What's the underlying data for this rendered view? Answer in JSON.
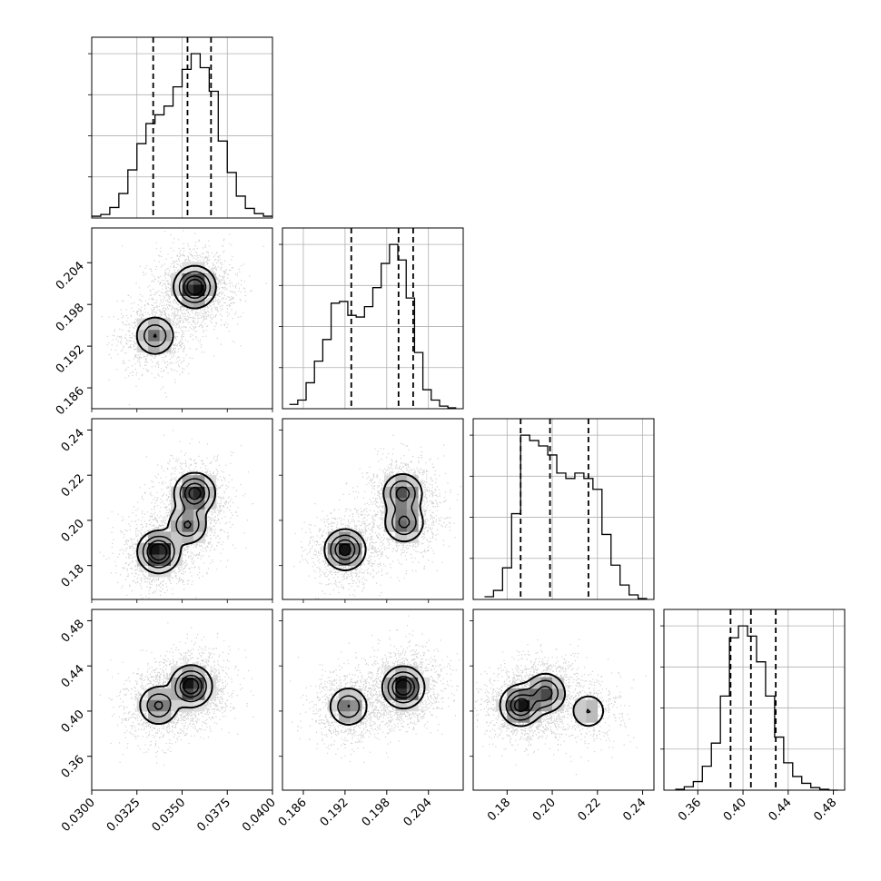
{
  "chart_data": {
    "type": "corner",
    "n_params": 4,
    "axes": [
      {
        "range": [
          0.03,
          0.04
        ],
        "ticks": [
          0.03,
          0.0325,
          0.035,
          0.0375,
          0.04
        ],
        "tick_labels": [
          "0.0300",
          "0.0325",
          "0.0350",
          "0.0375",
          "0.0400"
        ],
        "quantiles": [
          0.0334,
          0.0353,
          0.0366
        ]
      },
      {
        "range": [
          0.183,
          0.209
        ],
        "ticks": [
          0.186,
          0.192,
          0.198,
          0.204
        ],
        "tick_labels": [
          "0.186",
          "0.192",
          "0.198",
          "0.204"
        ],
        "quantiles": [
          0.1929,
          0.1997,
          0.2018
        ]
      },
      {
        "range": [
          0.165,
          0.245
        ],
        "ticks": [
          0.18,
          0.2,
          0.22,
          0.24
        ],
        "tick_labels": [
          "0.18",
          "0.20",
          "0.22",
          "0.24"
        ],
        "quantiles": [
          0.186,
          0.199,
          0.216
        ]
      },
      {
        "range": [
          0.33,
          0.49
        ],
        "ticks": [
          0.36,
          0.4,
          0.44,
          0.48
        ],
        "tick_labels": [
          "0.36",
          "0.40",
          "0.44",
          "0.48"
        ],
        "quantiles": [
          0.389,
          0.407,
          0.429
        ]
      }
    ],
    "histograms": [
      {
        "param": 0,
        "edges": [
          0.03,
          0.0305,
          0.031,
          0.0315,
          0.032,
          0.0325,
          0.033,
          0.0335,
          0.034,
          0.0345,
          0.035,
          0.0355,
          0.036,
          0.0365,
          0.037,
          0.0375,
          0.038,
          0.0385,
          0.039,
          0.0395,
          0.04
        ],
        "counts": [
          2,
          4,
          12,
          28,
          55,
          85,
          108,
          118,
          128,
          150,
          170,
          188,
          172,
          145,
          88,
          52,
          25,
          11,
          5,
          2
        ]
      },
      {
        "param": 1,
        "edges": [
          0.184,
          0.1852,
          0.1864,
          0.1876,
          0.1888,
          0.19,
          0.1912,
          0.1924,
          0.1936,
          0.1948,
          0.196,
          0.1972,
          0.1984,
          0.1996,
          0.2008,
          0.202,
          0.2032,
          0.2044,
          0.2056,
          0.2068,
          0.208
        ],
        "counts": [
          5,
          10,
          30,
          55,
          80,
          122,
          124,
          108,
          106,
          118,
          140,
          168,
          190,
          172,
          128,
          65,
          22,
          10,
          3,
          1
        ]
      },
      {
        "param": 2,
        "edges": [
          0.17,
          0.174,
          0.178,
          0.182,
          0.186,
          0.19,
          0.194,
          0.198,
          0.202,
          0.206,
          0.21,
          0.214,
          0.218,
          0.222,
          0.226,
          0.23,
          0.234,
          0.238,
          0.242
        ],
        "counts": [
          3,
          10,
          35,
          95,
          182,
          176,
          170,
          160,
          140,
          134,
          140,
          134,
          122,
          72,
          38,
          16,
          5,
          1
        ]
      },
      {
        "param": 3,
        "edges": [
          0.34,
          0.348,
          0.356,
          0.364,
          0.372,
          0.38,
          0.388,
          0.396,
          0.404,
          0.412,
          0.42,
          0.428,
          0.436,
          0.444,
          0.452,
          0.46,
          0.468,
          0.476,
          0.484
        ],
        "counts": [
          1,
          4,
          10,
          28,
          55,
          110,
          178,
          192,
          180,
          150,
          110,
          62,
          32,
          16,
          8,
          3,
          1,
          0
        ]
      }
    ],
    "joint_peaks": [
      {
        "x_param": 0,
        "y_param": 1,
        "peaks": [
          [
            0.0357,
            0.2005,
            1.0
          ],
          [
            0.0335,
            0.1935,
            0.55
          ]
        ]
      },
      {
        "x_param": 0,
        "y_param": 2,
        "peaks": [
          [
            0.0337,
            0.186,
            1.0
          ],
          [
            0.0357,
            0.212,
            0.85
          ],
          [
            0.0353,
            0.198,
            0.55
          ]
        ]
      },
      {
        "x_param": 0,
        "y_param": 3,
        "peaks": [
          [
            0.0355,
            0.422,
            1.0
          ],
          [
            0.0337,
            0.405,
            0.6
          ]
        ]
      },
      {
        "x_param": 1,
        "y_param": 2,
        "peaks": [
          [
            0.192,
            0.187,
            1.0
          ],
          [
            0.2003,
            0.212,
            0.75
          ],
          [
            0.2005,
            0.199,
            0.7
          ]
        ]
      },
      {
        "x_param": 1,
        "y_param": 3,
        "peaks": [
          [
            0.2004,
            0.421,
            1.0
          ],
          [
            0.1925,
            0.404,
            0.55
          ]
        ]
      },
      {
        "x_param": 2,
        "y_param": 3,
        "peaks": [
          [
            0.186,
            0.405,
            1.0
          ],
          [
            0.197,
            0.416,
            0.75
          ],
          [
            0.216,
            0.4,
            0.35
          ]
        ]
      }
    ],
    "grid": true,
    "title": "",
    "xlabel": "",
    "ylabel": ""
  }
}
